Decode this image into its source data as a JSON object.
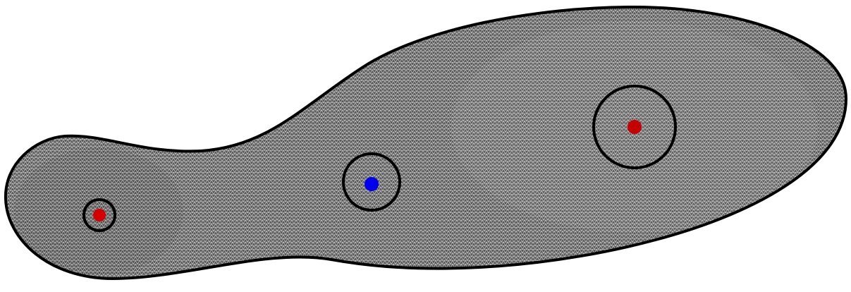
{
  "diagram": {
    "type": "insole-mesh-sensor-layout",
    "background_color": "#ffffff",
    "mesh": {
      "fill_color": "#5a5a5a",
      "line_color": "#e6e6e6",
      "outline_color": "#000000"
    },
    "markers": [
      {
        "id": "heel",
        "color": "#d40000",
        "ring": true
      },
      {
        "id": "midfoot",
        "color": "#0000ee",
        "ring": true
      },
      {
        "id": "forefoot",
        "color": "#c40000",
        "ring": true
      }
    ]
  }
}
